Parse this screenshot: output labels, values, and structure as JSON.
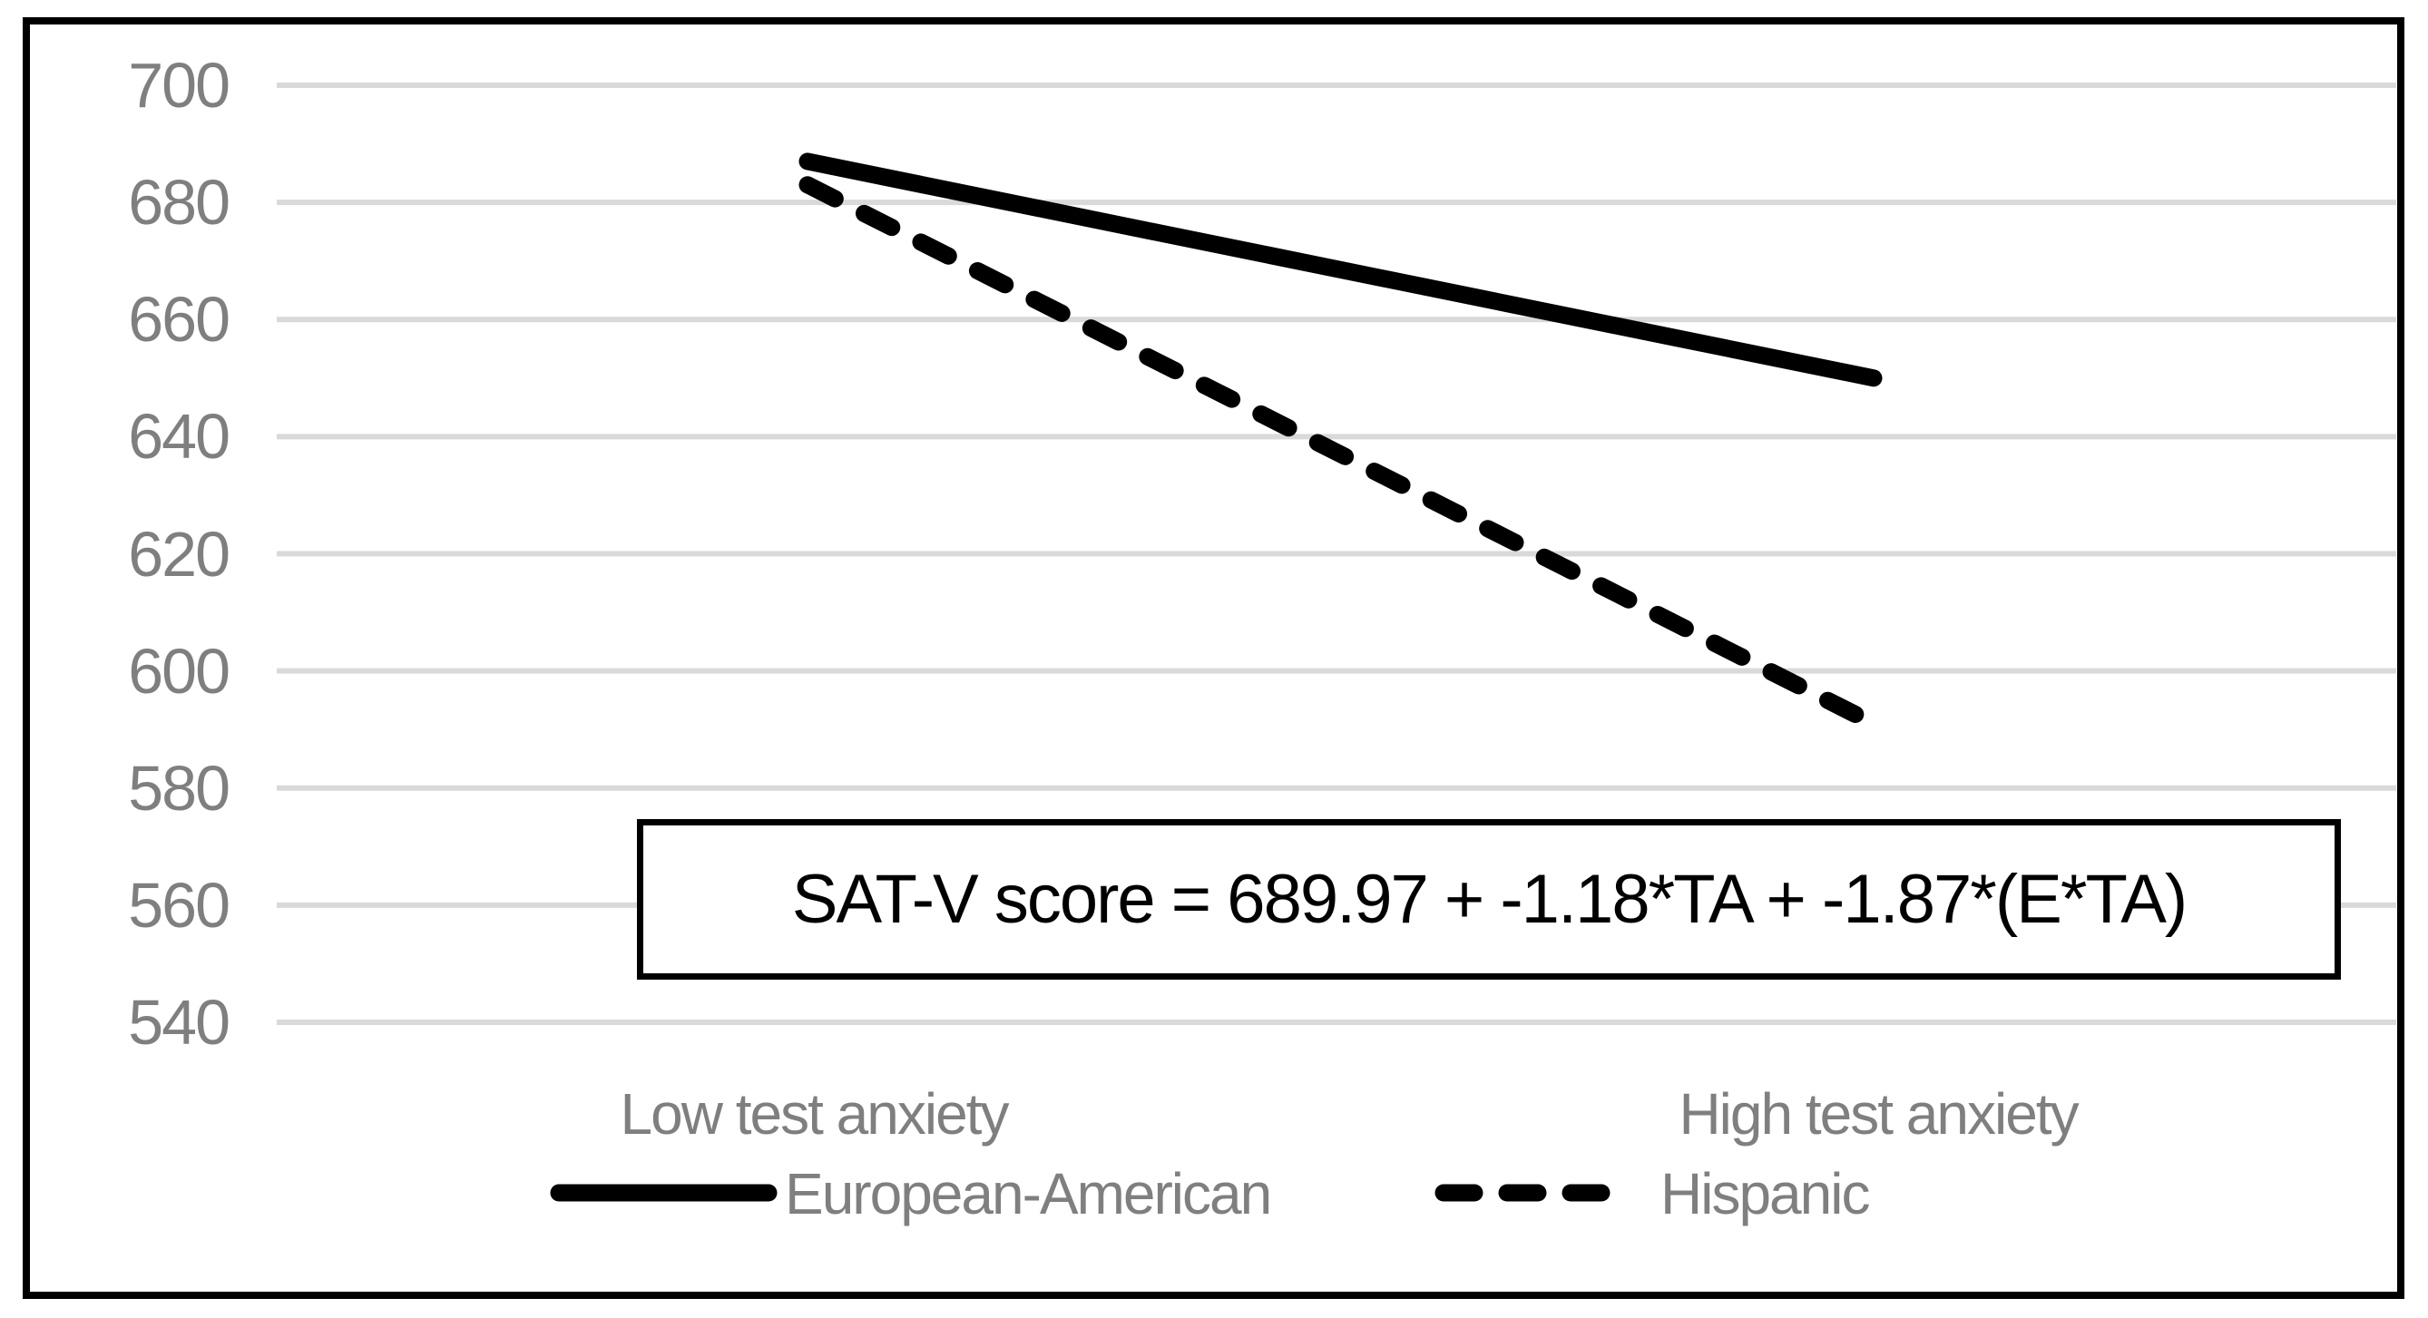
{
  "figure": {
    "background_color": "#FFFFFF",
    "frame_color": "#000000"
  },
  "chart_data": {
    "type": "line",
    "title": "",
    "xlabel": "",
    "ylabel": "",
    "categories": [
      "Low test anxiety",
      "High test anxiety"
    ],
    "series": [
      {
        "name": "European-American",
        "style": "solid",
        "color": "#000000",
        "values": [
          687,
          650
        ]
      },
      {
        "name": "Hispanic",
        "style": "dashed",
        "color": "#000000",
        "values": [
          683,
          591
        ]
      }
    ],
    "ylim": [
      540,
      700
    ],
    "ytick_interval": 20,
    "yticks": [
      700,
      680,
      660,
      640,
      620,
      600,
      580,
      560,
      540
    ],
    "grid": "horizontal-major",
    "gridline_color": "#D9D9D9",
    "tick_label_color": "#7F7F7F",
    "legend_position": "bottom",
    "annotation": "SAT-V score = 689.97 + -1.18*TA + -1.87*(E*TA)"
  }
}
